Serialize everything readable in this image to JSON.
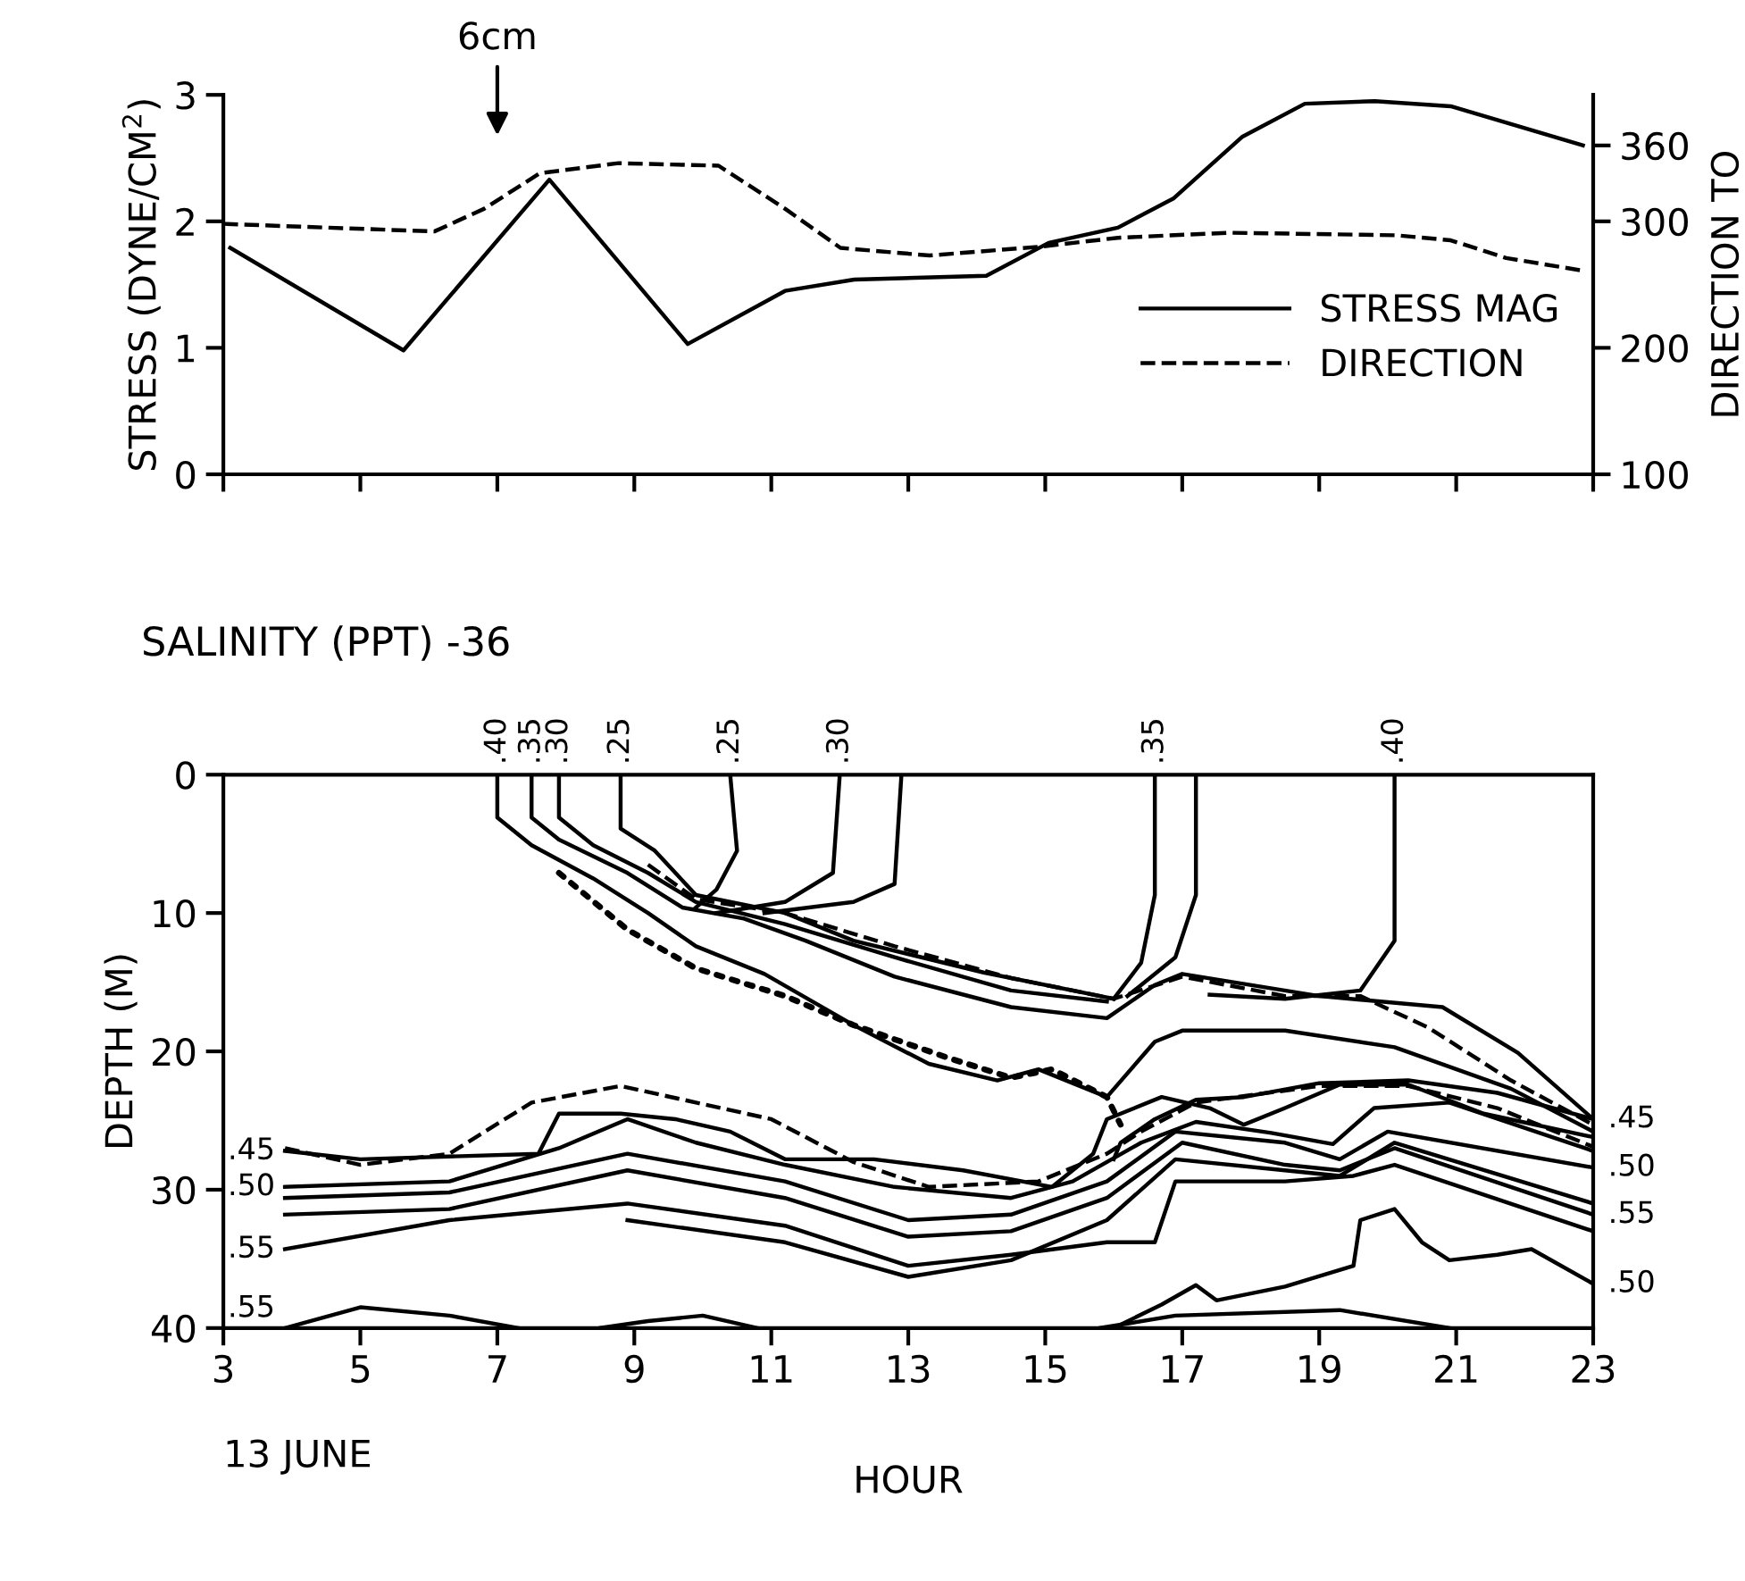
{
  "chart_data": [
    {
      "type": "line",
      "ylabel": "STRESS (DYNE/CM$^{2}$)",
      "y2label": "DIRECTION TO",
      "xlim": [
        3,
        23
      ],
      "xticks": [
        {
          "value": 3,
          "label": null
        },
        {
          "value": 5,
          "label": null
        },
        {
          "value": 7,
          "label": null
        },
        {
          "value": 9,
          "label": null
        },
        {
          "value": 11,
          "label": null
        },
        {
          "value": 13,
          "label": null
        },
        {
          "value": 15,
          "label": null
        },
        {
          "value": 17,
          "label": null
        },
        {
          "value": 19,
          "label": null
        },
        {
          "value": 21,
          "label": null
        },
        {
          "value": 23,
          "label": null
        }
      ],
      "ylim": [
        0,
        3
      ],
      "yticks": [
        0,
        1,
        2,
        3
      ],
      "y2lim": [
        100,
        400
      ],
      "y2ticks": [
        100,
        200,
        300,
        360
      ],
      "tick_labels": "y",
      "grid": false,
      "legend": "bottom right",
      "marker": "none",
      "annotations": [
        "6cm"
      ],
      "series": [
        {
          "name": "STRESS MAG",
          "color": "#000000",
          "line_style": "solid",
          "x": [
            3.1,
            5.63,
            7.76,
            9.78,
            11.2,
            12.21,
            14.14,
            15.05,
            16.06,
            16.87,
            17.88,
            18.79,
            19.81,
            20.92,
            22.85
          ],
          "values": [
            1.79,
            0.98,
            2.33,
            1.03,
            1.45,
            1.54,
            1.57,
            1.83,
            1.95,
            2.18,
            2.67,
            2.93,
            2.95,
            2.91,
            2.6
          ]
        },
        {
          "name": "DIRECTION",
          "color": "#000000",
          "line_style": "dashed",
          "axis": "y2",
          "x": [
            3.0,
            6.08,
            6.81,
            7.62,
            8.77,
            10.23,
            11.2,
            12.01,
            13.31,
            14.93,
            16.06,
            17.68,
            20.12,
            20.92,
            21.73,
            22.85
          ],
          "values": [
            298,
            292,
            310,
            338,
            346,
            344,
            310,
            279,
            273,
            280,
            287,
            291,
            289,
            285,
            271,
            261
          ]
        }
      ]
    },
    {
      "type": "line",
      "title": "SALINITY (PPT) -36",
      "xlabel": "HOUR",
      "ylabel": "DEPTH (M)",
      "xlim": [
        3,
        23
      ],
      "xticks": [
        3,
        5,
        7,
        9,
        11,
        13,
        15,
        17,
        19,
        21,
        23
      ],
      "ylim": [
        40,
        0
      ],
      "yticks": [
        0,
        10,
        20,
        30,
        40
      ],
      "grid": false,
      "legend": false,
      "marker": "none",
      "annotations": [
        "13 JUNE"
      ],
      "series": [
        {
          "name": ".40",
          "color": "#000000",
          "line_style": "solid",
          "x": [
            7.0,
            7.0,
            7.5,
            8.4,
            9.2,
            9.9,
            10.9,
            12.2,
            13.3,
            14.3,
            14.9,
            15.9,
            16.6,
            17.0,
            18.5,
            20.1,
            21.8,
            23.0
          ],
          "values": [
            0,
            3.1,
            5.1,
            7.5,
            10.0,
            12.4,
            14.4,
            18.1,
            20.9,
            22.1,
            21.3,
            23.3,
            19.3,
            18.5,
            18.5,
            19.7,
            22.7,
            25.8
          ]
        },
        {
          "name": ".35",
          "color": "#000000",
          "line_style": "solid",
          "x": [
            7.5,
            7.5,
            7.9,
            8.9,
            9.7,
            10.6,
            11.5,
            12.8,
            14.5,
            15.9,
            16.6,
            17.0,
            19.0,
            20.8,
            21.9,
            23.0
          ],
          "values": [
            0,
            3.1,
            4.7,
            7.1,
            9.6,
            10.4,
            12.0,
            14.6,
            16.8,
            17.6,
            15.2,
            14.4,
            16.0,
            16.8,
            20.1,
            24.9
          ]
        },
        {
          "name": ".30",
          "color": "#000000",
          "line_style": "solid",
          "x": [
            7.9,
            7.9,
            8.4,
            9.2,
            9.9,
            11.2,
            12.8,
            14.5,
            15.9
          ],
          "values": [
            0,
            3.1,
            5.1,
            7.1,
            9.2,
            10.8,
            13.2,
            15.6,
            16.4
          ]
        },
        {
          "name": ".25",
          "color": "#000000",
          "line_style": "solid",
          "x": [
            8.8,
            8.8,
            9.3,
            9.9,
            11.2,
            12.2,
            14.1,
            16.0
          ],
          "values": [
            0,
            3.9,
            5.5,
            8.7,
            10.0,
            12.0,
            14.3,
            16.2
          ]
        },
        {
          "name": ".25",
          "color": "#000000",
          "line_style": "solid",
          "x": [
            10.4,
            10.5,
            10.2,
            9.9
          ],
          "values": [
            0,
            5.5,
            8.3,
            9.6
          ]
        },
        {
          "name": ".30",
          "color": "#000000",
          "line_style": "solid",
          "x": [
            12.0,
            11.9,
            11.2,
            10.2
          ],
          "values": [
            0,
            7.1,
            9.2,
            10.0
          ]
        },
        {
          "color": "#000000",
          "line_style": "solid",
          "x": [
            12.9,
            12.8,
            12.2,
            10.9
          ],
          "values": [
            0,
            7.9,
            9.2,
            10.0
          ]
        },
        {
          "name": ".35",
          "color": "#000000",
          "line_style": "solid",
          "x": [
            16.6,
            16.6,
            16.4,
            16.0
          ],
          "values": [
            0,
            8.7,
            13.6,
            16.2
          ]
        },
        {
          "color": "#000000",
          "line_style": "solid",
          "x": [
            17.2,
            17.2,
            16.9,
            16.2
          ],
          "values": [
            0,
            8.7,
            13.2,
            16.0
          ]
        },
        {
          "name": ".40",
          "color": "#000000",
          "line_style": "solid",
          "x": [
            20.1,
            20.1,
            19.6,
            18.5,
            17.4
          ],
          "values": [
            0,
            12.0,
            15.6,
            16.2,
            15.9
          ]
        },
        {
          "color": "#000000",
          "line_style": "dashed",
          "x": [
            9.2,
            9.9,
            11.2,
            12.8,
            14.5,
            16.0,
            17.0,
            18.5,
            19.6,
            20.6,
            21.8,
            23.0
          ],
          "values": [
            6.5,
            9.0,
            10.0,
            12.4,
            14.7,
            16.2,
            14.6,
            16.0,
            16.0,
            18.3,
            22.1,
            25.3
          ]
        },
        {
          "color": "#000000",
          "line_style": "dotted",
          "x": [
            7.9,
            8.9,
            9.9,
            11.2,
            12.2,
            13.6,
            14.5,
            15.1,
            15.9,
            16.1
          ],
          "values": [
            7.1,
            11.2,
            14.0,
            16.0,
            18.1,
            20.5,
            21.9,
            21.3,
            23.3,
            25.3
          ]
        },
        {
          "color": "#000000",
          "line_style": "dashed",
          "x": [
            3.9,
            5.0,
            6.3,
            7.5,
            8.8,
            9.9,
            11.0,
            12.2,
            13.3,
            14.9,
            15.9,
            16.4,
            17.2,
            19.0,
            20.3,
            21.6,
            23.0
          ],
          "values": [
            27.0,
            28.2,
            27.4,
            23.7,
            22.5,
            23.7,
            24.9,
            28.0,
            29.8,
            29.4,
            27.4,
            25.8,
            23.7,
            22.5,
            22.5,
            24.1,
            26.9
          ]
        },
        {
          "name": ".45",
          "color": "#000000",
          "line_style": "solid",
          "x": [
            23.0,
            21.6,
            20.3,
            19.0,
            17.9,
            17.2,
            16.6,
            16.1,
            16.0
          ],
          "values": [
            24.9,
            23.0,
            22.1,
            22.3,
            23.3,
            23.5,
            24.9,
            26.6,
            27.8
          ]
        },
        {
          "name": ".45",
          "color": "#000000",
          "line_style": "solid",
          "x": [
            3.9,
            5.0,
            7.6,
            7.9,
            8.8,
            9.6,
            10.4,
            11.2,
            12.5,
            13.8,
            15.1,
            15.7,
            15.9,
            16.7,
            17.4,
            17.9,
            18.5,
            19.3,
            20.3,
            21.4,
            23.0
          ],
          "values": [
            27.2,
            27.8,
            27.4,
            24.5,
            24.5,
            24.9,
            25.8,
            27.8,
            27.8,
            28.6,
            29.8,
            27.4,
            24.9,
            23.3,
            24.1,
            25.3,
            24.1,
            22.4,
            22.4,
            24.5,
            26.2
          ]
        },
        {
          "name": ".50",
          "color": "#000000",
          "line_style": "solid",
          "x": [
            3.9,
            6.3,
            7.9,
            8.9,
            9.9,
            11.2,
            12.8,
            14.5,
            15.4,
            16.4,
            17.2,
            18.3,
            19.2,
            19.8,
            20.9,
            23.0
          ],
          "values": [
            29.8,
            29.4,
            27.0,
            24.9,
            26.6,
            28.2,
            29.8,
            30.6,
            29.4,
            26.6,
            25.1,
            25.9,
            26.7,
            24.1,
            23.7,
            27.2
          ]
        },
        {
          "name": ".50",
          "color": "#000000",
          "line_style": "solid",
          "x": [
            23.0,
            20.0,
            19.3,
            18.5,
            16.9,
            15.9,
            14.5,
            13.0,
            11.2,
            8.9,
            6.3,
            3.9
          ],
          "values": [
            28.4,
            25.8,
            27.8,
            26.6,
            25.8,
            29.4,
            31.8,
            32.2,
            29.4,
            27.4,
            30.2,
            30.6
          ]
        },
        {
          "name": ".55",
          "color": "#000000",
          "line_style": "solid",
          "x": [
            23.0,
            20.1,
            19.3,
            18.5,
            17.0,
            15.9,
            14.5,
            13.0,
            11.2,
            8.9,
            6.3,
            3.9
          ],
          "values": [
            31.8,
            27.0,
            28.6,
            28.2,
            26.6,
            30.6,
            33.0,
            33.4,
            30.6,
            28.6,
            31.4,
            31.8
          ]
        },
        {
          "name": ".55",
          "color": "#000000",
          "line_style": "solid",
          "x": [
            3.9,
            6.3,
            8.9,
            11.2,
            13.0,
            14.5,
            15.9,
            16.6,
            16.9,
            18.5,
            19.5,
            20.1,
            23.0
          ],
          "values": [
            34.3,
            32.2,
            31.0,
            32.6,
            35.5,
            34.7,
            33.8,
            33.8,
            29.4,
            29.4,
            29.0,
            28.2,
            33.0
          ]
        },
        {
          "color": "#000000",
          "line_style": "solid",
          "x": [
            8.9,
            11.2,
            13.0,
            14.5,
            15.9,
            16.9,
            18.5,
            19.3,
            20.1,
            23.0
          ],
          "values": [
            32.2,
            33.8,
            36.3,
            35.1,
            32.2,
            27.8,
            28.6,
            29.0,
            26.6,
            31.0
          ]
        },
        {
          "name": ".50",
          "color": "#000000",
          "line_style": "solid",
          "x": [
            23.0,
            22.1,
            21.6,
            20.9,
            20.5,
            20.1,
            19.6,
            19.5,
            18.5,
            17.5,
            17.2,
            16.7,
            16.0
          ],
          "values": [
            36.8,
            34.3,
            34.7,
            35.1,
            33.8,
            31.4,
            32.2,
            35.5,
            37.0,
            38.0,
            36.9,
            38.3,
            40.0
          ]
        },
        {
          "name": ".55",
          "color": "#000000",
          "line_style": "solid",
          "x": [
            3.9,
            5.0,
            6.3,
            7.3
          ],
          "values": [
            40.0,
            38.5,
            39.1,
            40.0
          ]
        },
        {
          "color": "#000000",
          "line_style": "solid",
          "x": [
            8.5,
            9.2,
            10.0,
            10.8
          ],
          "values": [
            40.0,
            39.5,
            39.1,
            40.0
          ]
        },
        {
          "color": "#000000",
          "line_style": "solid",
          "x": [
            15.8,
            16.9,
            19.3,
            20.9
          ],
          "values": [
            40.0,
            39.1,
            38.7,
            40.0
          ]
        }
      ]
    }
  ]
}
